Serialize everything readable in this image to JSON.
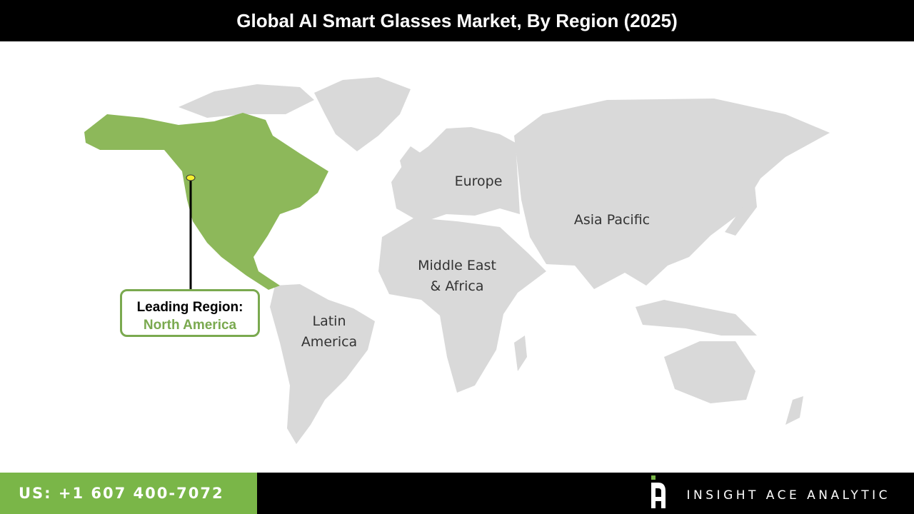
{
  "header": {
    "title": "Global AI Smart Glasses Market, By Region (2025)"
  },
  "map": {
    "colors": {
      "leading": "#8db85a",
      "other": "#d9d9d9",
      "accent": "#7aa94f",
      "marker": "#f5f030"
    },
    "regions": [
      {
        "id": "north-america",
        "label": "North America",
        "highlighted": true
      },
      {
        "id": "europe",
        "label": "Europe",
        "highlighted": false
      },
      {
        "id": "asia-pacific",
        "label": "Asia Pacific",
        "highlighted": false
      },
      {
        "id": "mea",
        "label_line1": "Middle East",
        "label_line2": "& Africa",
        "highlighted": false
      },
      {
        "id": "latin-america",
        "label_line1": "Latin",
        "label_line2": "America",
        "highlighted": false
      }
    ],
    "callout": {
      "title": "Leading Region:",
      "value": "North America"
    }
  },
  "footer": {
    "phone": "US: +1 607 400-7072",
    "brand": "INSIGHT ACE ANALYTIC"
  }
}
